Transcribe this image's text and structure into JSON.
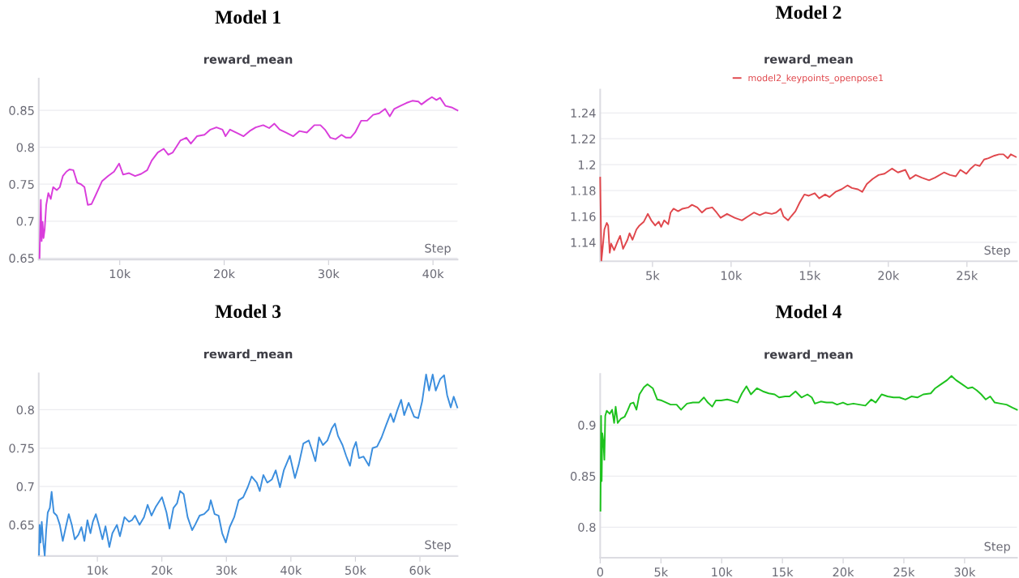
{
  "chart_data": [
    {
      "type": "line",
      "title": "Model 1",
      "subtitle": "reward_mean",
      "xlabel": "Step",
      "grid": "y",
      "legend": false,
      "marker": "none",
      "line_style": "solid",
      "xlim": [
        2240,
        42350
      ],
      "xticks": [
        {
          "value": 10000,
          "label": "10k"
        },
        {
          "value": 20000,
          "label": "20k"
        },
        {
          "value": 30000,
          "label": "30k"
        },
        {
          "value": 40000,
          "label": "40k"
        }
      ],
      "ylim": [
        0.648,
        0.893
      ],
      "yticks": [
        0.65,
        0.7,
        0.75,
        0.8,
        0.85
      ],
      "series": [
        {
          "color": "#d93ddb",
          "x": [
            2320,
            2440,
            2520,
            2610,
            2700,
            2810,
            2960,
            3160,
            3390,
            3620,
            3970,
            4260,
            4550,
            4890,
            5180,
            5560,
            5930,
            6280,
            6620,
            6940,
            7290,
            7720,
            8300,
            8870,
            9450,
            9940,
            10320,
            10890,
            11470,
            12050,
            12630,
            13060,
            13640,
            14210,
            14650,
            15080,
            15800,
            16380,
            16810,
            17390,
            18110,
            18690,
            19260,
            19840,
            20130,
            20560,
            21280,
            21860,
            22440,
            23020,
            23740,
            24310,
            24810,
            25320,
            25900,
            26620,
            27200,
            27920,
            28640,
            29220,
            29650,
            30170,
            30660,
            31240,
            31670,
            32110,
            32540,
            33120,
            33690,
            34270,
            34850,
            35420,
            35860,
            36290,
            36870,
            37450,
            38020,
            38600,
            38890,
            39460,
            39900,
            40330,
            40680,
            41200,
            41780,
            42350
          ],
          "values": [
            0.65,
            0.729,
            0.673,
            0.699,
            0.677,
            0.689,
            0.722,
            0.738,
            0.73,
            0.746,
            0.742,
            0.746,
            0.761,
            0.767,
            0.77,
            0.769,
            0.752,
            0.75,
            0.746,
            0.722,
            0.723,
            0.736,
            0.754,
            0.761,
            0.767,
            0.778,
            0.763,
            0.765,
            0.761,
            0.764,
            0.769,
            0.782,
            0.793,
            0.798,
            0.79,
            0.793,
            0.809,
            0.813,
            0.805,
            0.815,
            0.817,
            0.824,
            0.827,
            0.824,
            0.815,
            0.824,
            0.819,
            0.815,
            0.822,
            0.827,
            0.83,
            0.826,
            0.832,
            0.824,
            0.82,
            0.815,
            0.822,
            0.82,
            0.83,
            0.83,
            0.824,
            0.813,
            0.811,
            0.817,
            0.813,
            0.813,
            0.82,
            0.836,
            0.836,
            0.844,
            0.846,
            0.852,
            0.842,
            0.852,
            0.856,
            0.86,
            0.863,
            0.862,
            0.858,
            0.864,
            0.868,
            0.864,
            0.867,
            0.856,
            0.854,
            0.85
          ]
        }
      ]
    },
    {
      "type": "line",
      "title": "Model 2",
      "subtitle": "reward_mean",
      "xlabel": "Step",
      "grid": "y",
      "legend": "top",
      "marker": "none",
      "line_style": "solid",
      "xlim": [
        1673,
        28180
      ],
      "xticks": [
        {
          "value": 5000,
          "label": "5k"
        },
        {
          "value": 10000,
          "label": "10k"
        },
        {
          "value": 15000,
          "label": "15k"
        },
        {
          "value": 20000,
          "label": "20k"
        },
        {
          "value": 25000,
          "label": "25k"
        }
      ],
      "ylim": [
        1.1254,
        1.258
      ],
      "yticks": [
        1.14,
        1.16,
        1.18,
        1.2,
        1.22,
        1.24
      ],
      "series": [
        {
          "name": "model2_keypoints_openpose1",
          "color": "#e0474c",
          "x": [
            1673,
            1750,
            1840,
            1940,
            2090,
            2180,
            2280,
            2370,
            2560,
            2790,
            2940,
            3130,
            3410,
            3540,
            3730,
            3980,
            4170,
            4450,
            4700,
            4920,
            5170,
            5400,
            5550,
            5740,
            6000,
            6150,
            6340,
            6630,
            6910,
            7290,
            7510,
            7850,
            8140,
            8420,
            8800,
            9080,
            9330,
            9740,
            10220,
            10690,
            11070,
            11450,
            11820,
            12200,
            12580,
            12860,
            13150,
            13330,
            13620,
            13810,
            14090,
            14370,
            14660,
            14940,
            15320,
            15600,
            15980,
            16260,
            16640,
            17020,
            17400,
            17680,
            18060,
            18340,
            18630,
            19000,
            19380,
            19760,
            20230,
            20610,
            21080,
            21370,
            21740,
            22120,
            22590,
            22970,
            23540,
            23920,
            24290,
            24580,
            24960,
            25240,
            25520,
            25810,
            26090,
            26370,
            26750,
            27040,
            27320,
            27600,
            27790,
            28110
          ],
          "values": [
            1.19,
            1.126,
            1.137,
            1.15,
            1.155,
            1.153,
            1.132,
            1.139,
            1.134,
            1.141,
            1.145,
            1.135,
            1.142,
            1.147,
            1.142,
            1.15,
            1.153,
            1.156,
            1.162,
            1.157,
            1.153,
            1.156,
            1.152,
            1.157,
            1.154,
            1.163,
            1.166,
            1.164,
            1.166,
            1.167,
            1.169,
            1.167,
            1.163,
            1.166,
            1.167,
            1.163,
            1.159,
            1.162,
            1.159,
            1.157,
            1.16,
            1.163,
            1.161,
            1.163,
            1.162,
            1.163,
            1.166,
            1.16,
            1.157,
            1.16,
            1.164,
            1.171,
            1.177,
            1.176,
            1.178,
            1.174,
            1.177,
            1.175,
            1.179,
            1.181,
            1.184,
            1.182,
            1.181,
            1.179,
            1.185,
            1.189,
            1.192,
            1.193,
            1.197,
            1.194,
            1.196,
            1.189,
            1.192,
            1.19,
            1.188,
            1.19,
            1.194,
            1.192,
            1.191,
            1.196,
            1.193,
            1.197,
            1.2,
            1.199,
            1.204,
            1.205,
            1.207,
            1.208,
            1.208,
            1.205,
            1.208,
            1.206
          ]
        }
      ]
    },
    {
      "type": "line",
      "title": "Model 3",
      "subtitle": "reward_mean",
      "xlabel": "Step",
      "grid": "y",
      "legend": false,
      "marker": "none",
      "line_style": "solid",
      "xlim": [
        910,
        65830
      ],
      "xticks": [
        {
          "value": 10000,
          "label": "10k"
        },
        {
          "value": 20000,
          "label": "20k"
        },
        {
          "value": 30000,
          "label": "30k"
        },
        {
          "value": 40000,
          "label": "40k"
        },
        {
          "value": 50000,
          "label": "50k"
        },
        {
          "value": 60000,
          "label": "60k"
        }
      ],
      "ylim": [
        0.6093,
        0.8474
      ],
      "yticks": [
        0.65,
        0.7,
        0.75,
        0.8
      ],
      "series": [
        {
          "color": "#3b8ede",
          "x": [
            956,
            1050,
            1190,
            1380,
            1610,
            1840,
            2070,
            2310,
            2630,
            2910,
            3240,
            3710,
            4180,
            4640,
            5110,
            5570,
            6040,
            6500,
            7060,
            7530,
            7990,
            8460,
            8930,
            9300,
            9770,
            10230,
            10790,
            11260,
            11860,
            12330,
            13030,
            13500,
            14200,
            14900,
            15360,
            15830,
            16530,
            17230,
            17790,
            18390,
            19090,
            20020,
            20720,
            21190,
            21790,
            22350,
            22820,
            23380,
            23990,
            24690,
            25150,
            25850,
            26550,
            27250,
            27580,
            28180,
            28790,
            29350,
            29910,
            30510,
            31210,
            31910,
            32610,
            33310,
            33920,
            34710,
            35170,
            35730,
            36340,
            37040,
            37650,
            38300,
            38900,
            39840,
            40630,
            41230,
            41930,
            42770,
            43330,
            43800,
            44360,
            44970,
            45660,
            46360,
            46830,
            47300,
            48000,
            48560,
            49160,
            49630,
            50090,
            50560,
            51260,
            52100,
            52660,
            53360,
            54060,
            54760,
            55450,
            55920,
            56480,
            57090,
            57560,
            58250,
            59090,
            59740,
            60350,
            60960,
            61420,
            61980,
            62450,
            63150,
            63750,
            64220,
            64780,
            65240,
            65800
          ],
          "values": [
            0.611,
            0.65,
            0.627,
            0.654,
            0.627,
            0.61,
            0.643,
            0.666,
            0.672,
            0.693,
            0.666,
            0.662,
            0.65,
            0.629,
            0.647,
            0.664,
            0.65,
            0.631,
            0.637,
            0.647,
            0.629,
            0.656,
            0.639,
            0.654,
            0.664,
            0.65,
            0.631,
            0.648,
            0.621,
            0.639,
            0.65,
            0.635,
            0.66,
            0.654,
            0.656,
            0.662,
            0.65,
            0.66,
            0.676,
            0.662,
            0.674,
            0.686,
            0.666,
            0.645,
            0.672,
            0.678,
            0.694,
            0.69,
            0.66,
            0.643,
            0.65,
            0.662,
            0.664,
            0.67,
            0.682,
            0.664,
            0.662,
            0.639,
            0.627,
            0.647,
            0.66,
            0.682,
            0.686,
            0.699,
            0.713,
            0.705,
            0.694,
            0.715,
            0.705,
            0.709,
            0.721,
            0.699,
            0.721,
            0.74,
            0.711,
            0.729,
            0.756,
            0.76,
            0.746,
            0.733,
            0.764,
            0.754,
            0.76,
            0.776,
            0.782,
            0.766,
            0.754,
            0.74,
            0.727,
            0.748,
            0.758,
            0.737,
            0.739,
            0.727,
            0.75,
            0.752,
            0.764,
            0.78,
            0.795,
            0.784,
            0.799,
            0.813,
            0.793,
            0.809,
            0.791,
            0.789,
            0.811,
            0.846,
            0.825,
            0.846,
            0.825,
            0.84,
            0.845,
            0.819,
            0.803,
            0.817,
            0.803
          ]
        }
      ]
    },
    {
      "type": "line",
      "title": "Model 4",
      "subtitle": "reward_mean",
      "xlabel": "Step",
      "grid": "y",
      "legend": false,
      "marker": "none",
      "line_style": "solid",
      "xlim": [
        0,
        34310
      ],
      "xticks": [
        0,
        {
          "value": 5000,
          "label": "5k"
        },
        {
          "value": 10000,
          "label": "10k"
        },
        {
          "value": 15000,
          "label": "15k"
        },
        {
          "value": 20000,
          "label": "20k"
        },
        {
          "value": 25000,
          "label": "25k"
        },
        {
          "value": 30000,
          "label": "30k"
        }
      ],
      "ylim": [
        0.77,
        0.95
      ],
      "yticks": [
        0.8,
        0.85,
        0.9
      ],
      "series": [
        {
          "color": "#1dc21d",
          "x": [
            24,
            73,
            122,
            171,
            269,
            343,
            416,
            538,
            783,
            979,
            1150,
            1272,
            1444,
            1688,
            2007,
            2251,
            2496,
            2741,
            2985,
            3230,
            3597,
            3891,
            4331,
            4698,
            5065,
            5432,
            5799,
            6289,
            6656,
            7145,
            7635,
            8124,
            8540,
            8858,
            9225,
            9519,
            9959,
            10450,
            10810,
            11310,
            11670,
            12040,
            12410,
            12900,
            13390,
            13880,
            14360,
            14730,
            15220,
            15590,
            16080,
            16570,
            17060,
            17420,
            17670,
            18160,
            18650,
            19140,
            19500,
            19990,
            20360,
            20850,
            21340,
            21830,
            22320,
            22680,
            23170,
            23660,
            24150,
            24640,
            25130,
            25620,
            26110,
            26600,
            27210,
            27580,
            28070,
            28560,
            28920,
            29290,
            29780,
            30270,
            30640,
            31000,
            31370,
            31740,
            32110,
            32480,
            32960,
            33450,
            33940,
            34310
          ],
          "values": [
            0.816,
            0.909,
            0.845,
            0.892,
            0.883,
            0.866,
            0.909,
            0.914,
            0.911,
            0.915,
            0.902,
            0.918,
            0.902,
            0.906,
            0.908,
            0.914,
            0.921,
            0.922,
            0.915,
            0.93,
            0.937,
            0.94,
            0.936,
            0.925,
            0.924,
            0.922,
            0.92,
            0.92,
            0.915,
            0.921,
            0.922,
            0.922,
            0.927,
            0.922,
            0.918,
            0.924,
            0.924,
            0.925,
            0.924,
            0.922,
            0.931,
            0.938,
            0.93,
            0.936,
            0.933,
            0.931,
            0.93,
            0.927,
            0.928,
            0.928,
            0.933,
            0.927,
            0.93,
            0.927,
            0.921,
            0.923,
            0.922,
            0.922,
            0.92,
            0.922,
            0.92,
            0.921,
            0.92,
            0.919,
            0.925,
            0.922,
            0.93,
            0.928,
            0.927,
            0.927,
            0.925,
            0.928,
            0.927,
            0.93,
            0.931,
            0.936,
            0.94,
            0.944,
            0.948,
            0.944,
            0.94,
            0.936,
            0.937,
            0.934,
            0.93,
            0.925,
            0.928,
            0.922,
            0.921,
            0.92,
            0.917,
            0.915
          ]
        }
      ]
    }
  ]
}
